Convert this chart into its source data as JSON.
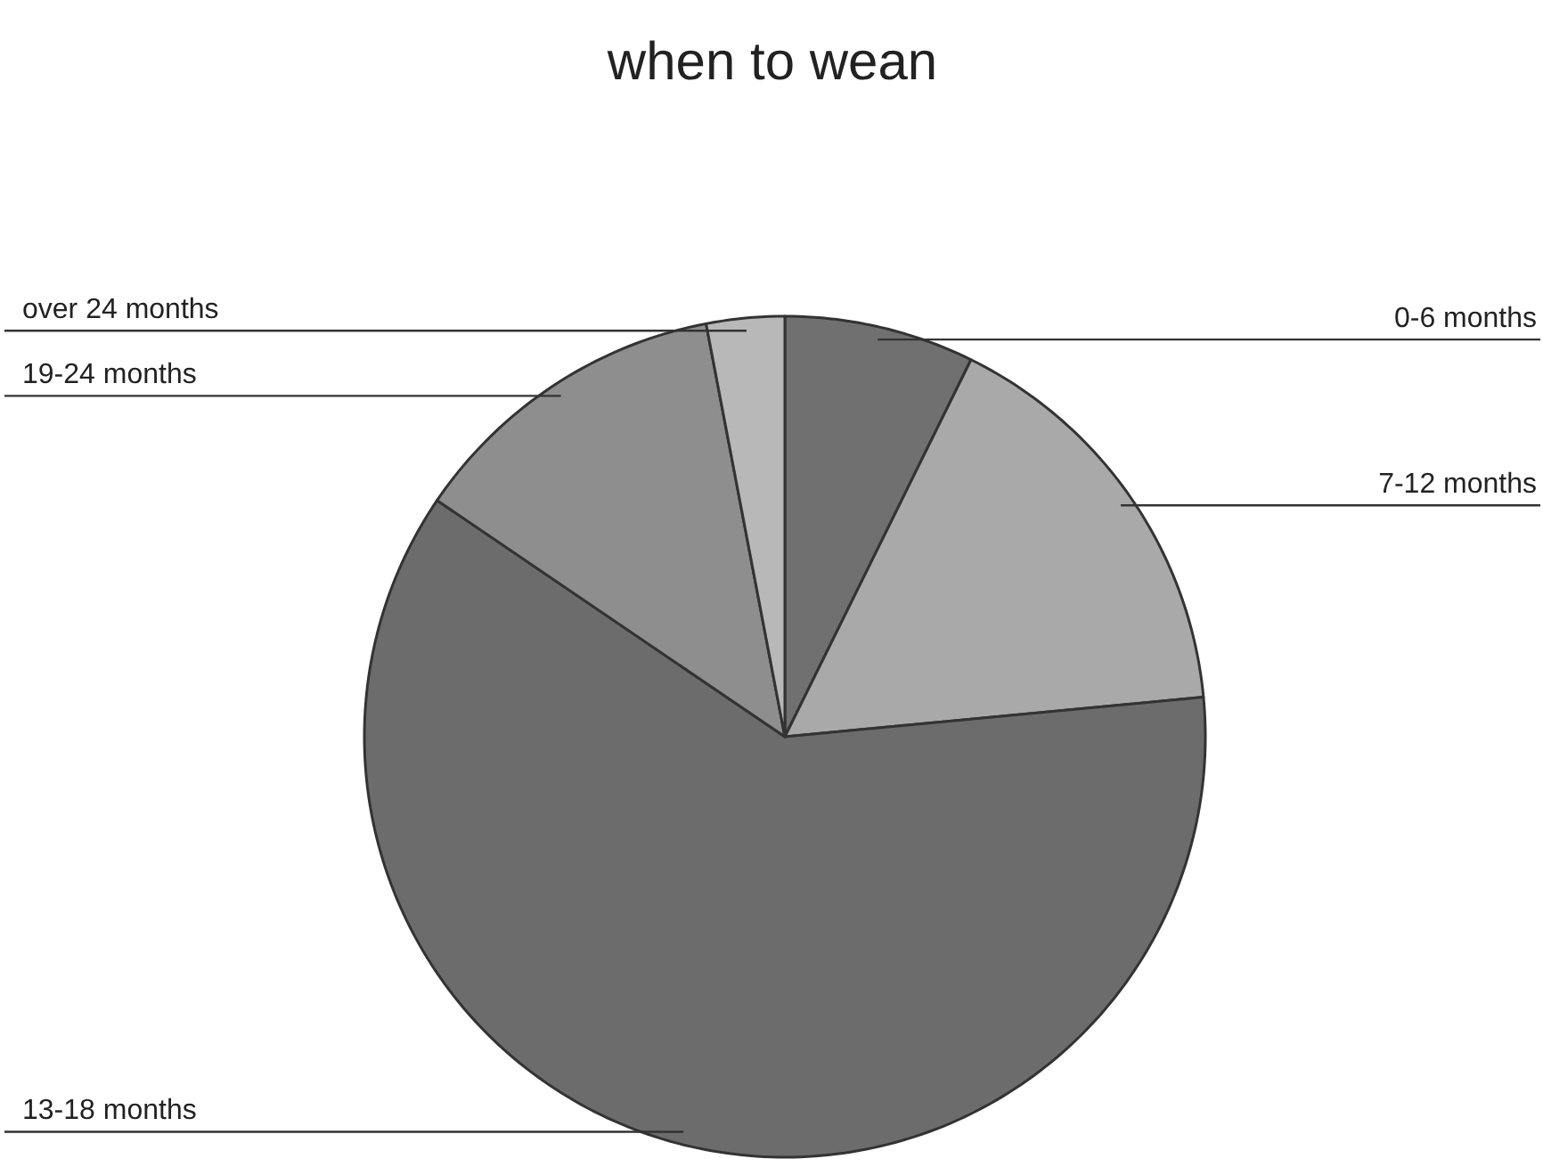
{
  "chart_data": {
    "type": "pie",
    "title": "when to wean",
    "categories": [
      "0-6 months",
      "7-12 months",
      "13-18 months",
      "19-24 months",
      "over 24 months"
    ],
    "values": [
      7.3,
      16.2,
      61.0,
      12.5,
      3.0
    ],
    "colors": [
      "#707070",
      "#a9a9a9",
      "#6c6c6c",
      "#8e8e8e",
      "#b8b8b8"
    ]
  }
}
